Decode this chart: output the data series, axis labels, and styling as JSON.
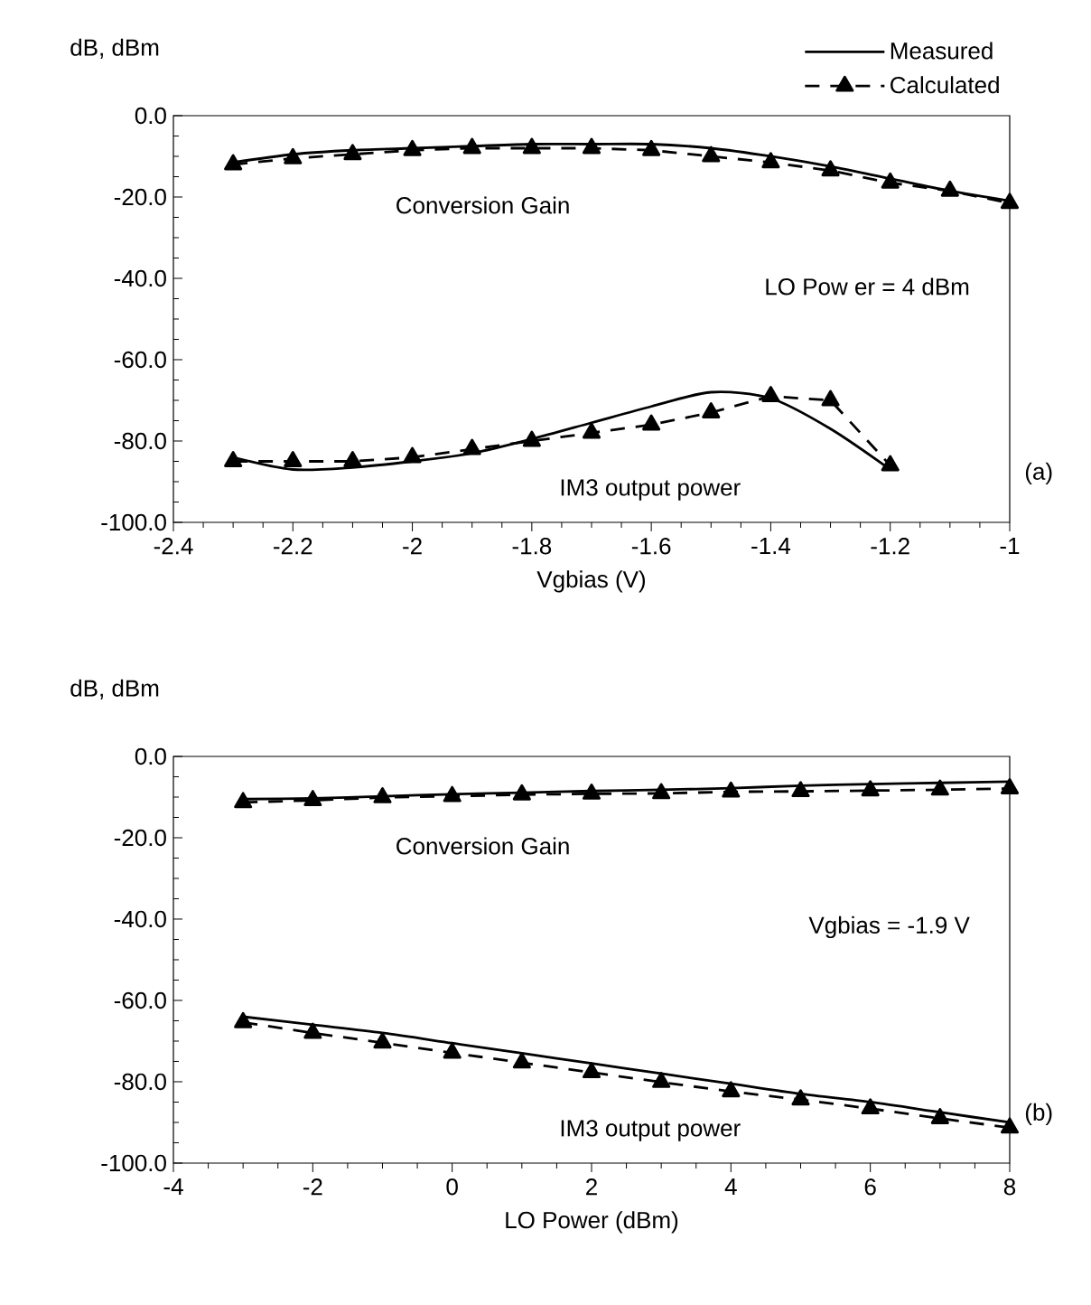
{
  "chart_data": [
    {
      "type": "line",
      "xlabel": "Vgbias (V)",
      "ylabel": "dB, dBm",
      "x": [
        -2.3,
        -2.2,
        -2.1,
        -2.0,
        -1.9,
        -1.8,
        -1.7,
        -1.6,
        -1.5,
        -1.4,
        -1.3,
        -1.2,
        -1.1,
        -1.0
      ],
      "series": [
        {
          "name": "Measured",
          "color": "#000000",
          "marker": "none",
          "line_style": "solid",
          "values": [
            -11.5,
            -9.5,
            -8.5,
            -8,
            -7.5,
            -7,
            -7,
            -7,
            -8,
            -10,
            -12.5,
            -15.5,
            -18.5,
            -21
          ]
        },
        {
          "name": "Calculated",
          "color": "#000000",
          "marker": "triangle",
          "line_style": "dashed",
          "values": [
            -12,
            -10.5,
            -9.5,
            -8.5,
            -8,
            -8,
            -8,
            -8.5,
            -10,
            -11.5,
            -13.5,
            -16.5,
            -18.5,
            -21.5
          ]
        },
        {
          "color": "#000000",
          "marker": "none",
          "line_style": "solid",
          "x": [
            -2.3,
            -2.2,
            -2.1,
            -2.0,
            -1.9,
            -1.8,
            -1.7,
            -1.6,
            -1.5,
            -1.4,
            -1.3,
            -1.2
          ],
          "values": [
            -84,
            -87,
            -86.5,
            -85,
            -83,
            -79.5,
            -75.5,
            -71.5,
            -68,
            -69.5,
            -77,
            -87
          ]
        },
        {
          "color": "#000000",
          "marker": "triangle",
          "line_style": "dashed",
          "x": [
            -2.3,
            -2.2,
            -2.1,
            -2.0,
            -1.9,
            -1.8,
            -1.7,
            -1.6,
            -1.5,
            -1.4,
            -1.3,
            -1.2
          ],
          "values": [
            -85,
            -85,
            -85,
            -84,
            -82,
            -80,
            -78,
            -76,
            -73,
            -69,
            -70,
            -86
          ]
        }
      ],
      "xlim": [
        -2.4,
        -1.0
      ],
      "xticks": [
        -2.4,
        -2.2,
        -2,
        -1.8,
        -1.6,
        -1.4,
        -1.2,
        -1
      ],
      "ylim": [
        -100,
        0
      ],
      "yticks": [
        {
          "value": -100,
          "label": "-100.0"
        },
        {
          "value": -80,
          "label": "-80.0"
        },
        {
          "value": -60,
          "label": "-60.0"
        },
        {
          "value": -40,
          "label": "-40.0"
        },
        {
          "value": -20,
          "label": "-20.0"
        },
        {
          "value": 0,
          "label": "0.0"
        }
      ],
      "legend": "top right",
      "grid": false,
      "annotations": [
        "Conversion Gain",
        "IM3 output power",
        "LO Pow er = 4 dBm",
        "(a)"
      ]
    },
    {
      "type": "line",
      "xlabel": "LO Power (dBm)",
      "ylabel": "dB, dBm",
      "x": [
        -3,
        -2,
        -1,
        0,
        1,
        2,
        3,
        4,
        5,
        6,
        7,
        8
      ],
      "series": [
        {
          "color": "#000000",
          "marker": "none",
          "line_style": "solid",
          "values": [
            -10.5,
            -10.3,
            -9.8,
            -9.3,
            -8.9,
            -8.5,
            -8.2,
            -7.8,
            -7.2,
            -6.8,
            -6.5,
            -6.2
          ]
        },
        {
          "color": "#000000",
          "marker": "triangle",
          "line_style": "dashed",
          "values": [
            -11.3,
            -10.8,
            -10.1,
            -9.8,
            -9.4,
            -9.2,
            -9.1,
            -8.7,
            -8.6,
            -8.4,
            -8.2,
            -7.9
          ]
        },
        {
          "color": "#000000",
          "marker": "none",
          "line_style": "solid",
          "values": [
            -64,
            -66,
            -68,
            -70.5,
            -73,
            -75.5,
            -78,
            -80.5,
            -83,
            -85,
            -87.5,
            -90
          ]
        },
        {
          "color": "#000000",
          "marker": "triangle",
          "line_style": "dashed",
          "values": [
            -65.4,
            -68,
            -70.4,
            -72.9,
            -75.3,
            -77.7,
            -80.1,
            -82.4,
            -84.4,
            -86.6,
            -89,
            -91.3
          ]
        }
      ],
      "xlim": [
        -4,
        8
      ],
      "xticks": [
        -4,
        -2,
        0,
        2,
        4,
        6,
        8
      ],
      "ylim": [
        -100,
        0
      ],
      "yticks": [
        {
          "value": -100,
          "label": "-100.0"
        },
        {
          "value": -80,
          "label": "-80.0"
        },
        {
          "value": -60,
          "label": "-60.0"
        },
        {
          "value": -40,
          "label": "-40.0"
        },
        {
          "value": -20,
          "label": "-20.0"
        },
        {
          "value": 0,
          "label": "0.0"
        }
      ],
      "grid": false,
      "annotations": [
        "Conversion Gain",
        "IM3 output power",
        "Vgbias = -1.9 V",
        "(b)"
      ]
    }
  ]
}
